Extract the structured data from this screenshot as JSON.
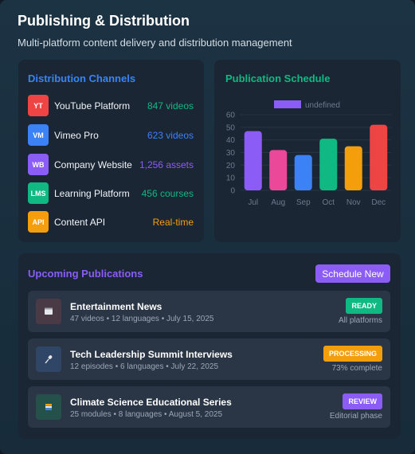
{
  "header": {
    "title": "Publishing & Distribution",
    "subtitle": "Multi-platform content delivery and distribution management"
  },
  "channels": {
    "title": "Distribution Channels",
    "items": [
      {
        "badge": "YT",
        "name": "YouTube Platform",
        "count": "847 videos",
        "badge_color": "#ef4444",
        "count_color": "#10b981"
      },
      {
        "badge": "VM",
        "name": "Vimeo Pro",
        "count": "623 videos",
        "badge_color": "#3b82f6",
        "count_color": "#3b82f6"
      },
      {
        "badge": "WB",
        "name": "Company Website",
        "count": "1,256 assets",
        "badge_color": "#8b5cf6",
        "count_color": "#8b5cf6"
      },
      {
        "badge": "LMS",
        "name": "Learning Platform",
        "count": "456 courses",
        "badge_color": "#10b981",
        "count_color": "#10b981"
      },
      {
        "badge": "API",
        "name": "Content API",
        "count": "Real-time",
        "badge_color": "#f59e0b",
        "count_color": "#f59e0b"
      }
    ]
  },
  "schedule": {
    "title": "Publication Schedule"
  },
  "chart_data": {
    "type": "bar",
    "categories": [
      "Jul",
      "Aug",
      "Sep",
      "Oct",
      "Nov",
      "Dec"
    ],
    "series": [
      {
        "name": "undefined",
        "values": [
          47,
          32,
          28,
          41,
          35,
          52
        ]
      }
    ],
    "bar_colors": [
      "#8b5cf6",
      "#ec4899",
      "#3b82f6",
      "#10b981",
      "#f59e0b",
      "#ef4444"
    ],
    "legend_color": "#8b5cf6",
    "yticks": [
      0,
      10,
      20,
      30,
      40,
      50,
      60
    ],
    "ylim": [
      0,
      60
    ],
    "grid": true,
    "legend": "top"
  },
  "upcoming": {
    "title": "Upcoming Publications",
    "schedule_button": "Schedule New",
    "items": [
      {
        "icon": "film-icon",
        "icon_glyph": "🎬",
        "icon_bg": "#4a3a46",
        "title": "Entertainment News",
        "meta": "47 videos • 12 languages • July 15, 2025",
        "status": "READY",
        "status_color": "#10b981",
        "note": "All platforms"
      },
      {
        "icon": "microphone-icon",
        "icon_glyph": "🎤",
        "icon_bg": "#2f4666",
        "title": "Tech Leadership Summit Interviews",
        "meta": "12 episodes • 6 languages • July 22, 2025",
        "status": "PROCESSING",
        "status_color": "#f59e0b",
        "note": "73% complete"
      },
      {
        "icon": "books-icon",
        "icon_glyph": "📚",
        "icon_bg": "#24524a",
        "title": "Climate Science Educational Series",
        "meta": "25 modules • 8 languages • August 5, 2025",
        "status": "REVIEW",
        "status_color": "#8b5cf6",
        "note": "Editorial phase"
      }
    ]
  }
}
